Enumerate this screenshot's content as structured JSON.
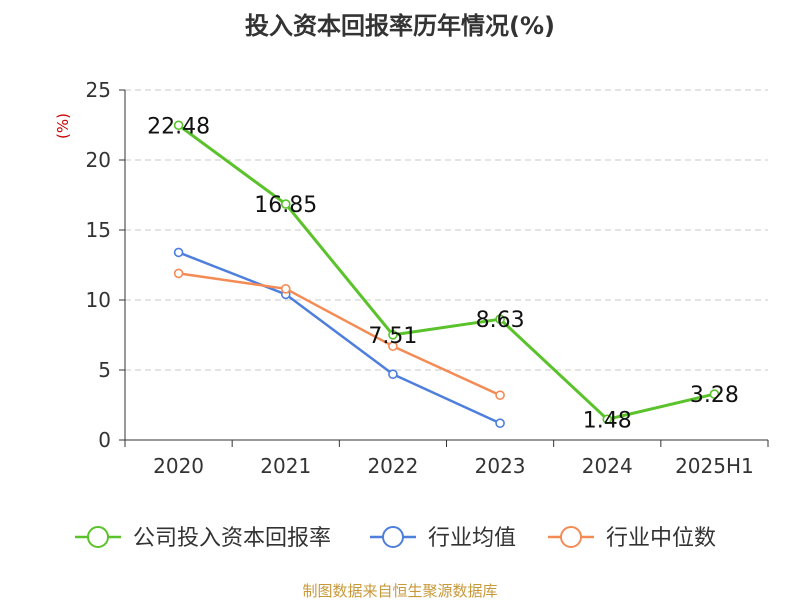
{
  "title": "投入资本回报率历年情况(%)",
  "source": "制图数据来自恒生聚源数据库",
  "colors": {
    "company": "#5ac22a",
    "industry_avg": "#4e7fdc",
    "industry_median": "#f48b54",
    "axis": "#333333",
    "grid": "#c8c8c8",
    "unit_label": "#cc0000",
    "source_text": "#c8993a"
  },
  "chart_data": {
    "type": "line",
    "title": "投入资本回报率历年情况(%)",
    "ylabel": "(%)",
    "xlabel": "",
    "categories": [
      "2020",
      "2021",
      "2022",
      "2023",
      "2024",
      "2025H1"
    ],
    "ylim": [
      0,
      25
    ],
    "yticks": [
      "0",
      "5",
      "10",
      "15",
      "20",
      "25"
    ],
    "grid": true,
    "legend_position": "bottom",
    "series": [
      {
        "name": "公司投入资本回报率",
        "values": [
          22.48,
          16.85,
          7.51,
          8.63,
          1.48,
          3.28
        ],
        "labels": [
          "22.48",
          "16.85",
          "7.51",
          "8.63",
          "1.48",
          "3.28"
        ],
        "color": "#5ac22a"
      },
      {
        "name": "行业均值",
        "values": [
          13.4,
          10.4,
          4.7,
          1.2,
          null,
          null
        ],
        "color": "#4e7fdc"
      },
      {
        "name": "行业中位数",
        "values": [
          11.9,
          10.8,
          6.7,
          3.2,
          null,
          null
        ],
        "color": "#f48b54"
      }
    ]
  }
}
